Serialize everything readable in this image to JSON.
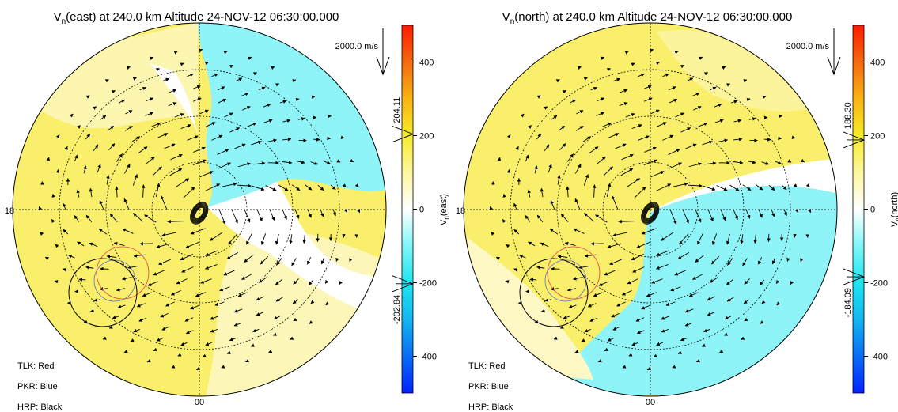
{
  "chart_data": [
    {
      "type": "polar-map",
      "title": {
        "symbol": "V",
        "subscript": "n",
        "text": "(east) at 240.0 km Altitude 24-NOV-12 06:30:00.000"
      },
      "colorbar_label": {
        "symbol": "V",
        "subscript": "n",
        "text": "(east)"
      },
      "ylim": [
        -500,
        500
      ],
      "yticks": [
        -400,
        -200,
        0,
        200,
        400
      ],
      "markers": [
        204.11,
        -202.84
      ],
      "colormap": [
        "#0022ff",
        "#0a6cf5",
        "#14b6f0",
        "#1ee6f0",
        "#80f6f8",
        "#ffffff",
        "#fdf6a0",
        "#f6ec28",
        "#f8b414",
        "#f46a10",
        "#ff1a00"
      ],
      "hour_labels": [
        "18",
        "00"
      ],
      "reference_arrow": "2000.0 m/s",
      "stations": [
        "TLK: Red",
        "PKR: Blue",
        "HRP: Black"
      ]
    },
    {
      "type": "polar-map",
      "title": {
        "symbol": "V",
        "subscript": "n",
        "text": "(north) at 240.0 km Altitude 24-NOV-12 06:30:00.000"
      },
      "colorbar_label": {
        "symbol": "V",
        "subscript": "n",
        "text": "(north)"
      },
      "ylim": [
        -500,
        500
      ],
      "yticks": [
        -400,
        -200,
        0,
        200,
        400
      ],
      "markers": [
        {
          "value": 188.3,
          "label": "188.30"
        },
        -184.09
      ],
      "colormap": [
        "#0022ff",
        "#0a6cf5",
        "#14b6f0",
        "#1ee6f0",
        "#80f6f8",
        "#ffffff",
        "#fdf6a0",
        "#f6ec28",
        "#f8b414",
        "#f46a10",
        "#ff1a00"
      ],
      "hour_labels": [
        "18",
        "00"
      ],
      "reference_arrow": "2000.0 m/s",
      "stations": [
        "TLK: Red",
        "PKR: Blue",
        "HRP: Black"
      ]
    }
  ]
}
